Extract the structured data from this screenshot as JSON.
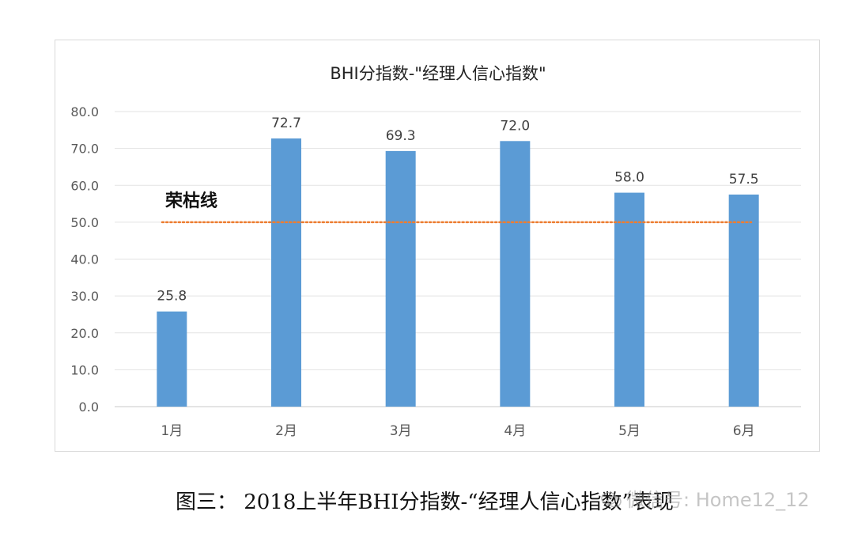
{
  "chart_data": {
    "type": "bar",
    "title": "BHI分指数-\"经理人信心指数\"",
    "categories": [
      "1月",
      "2月",
      "3月",
      "4月",
      "5月",
      "6月"
    ],
    "values": [
      25.8,
      72.7,
      69.3,
      72.0,
      58.0,
      57.5
    ],
    "value_labels": [
      "25.8",
      "72.7",
      "69.3",
      "72.0",
      "58.0",
      "57.5"
    ],
    "yticks": [
      "0.0",
      "10.0",
      "20.0",
      "30.0",
      "40.0",
      "50.0",
      "60.0",
      "70.0",
      "80.0"
    ],
    "ylim": [
      0,
      80
    ],
    "grid": true,
    "bar_color": "#5b9bd5",
    "reference_line": {
      "value": 50,
      "label": "荣枯线",
      "color": "#ed7d31",
      "style": "dotted"
    }
  },
  "caption": "图三： 2018上半年BHI分指数-“经理人信心指数”表现",
  "watermark": "微信号: Home12_12"
}
